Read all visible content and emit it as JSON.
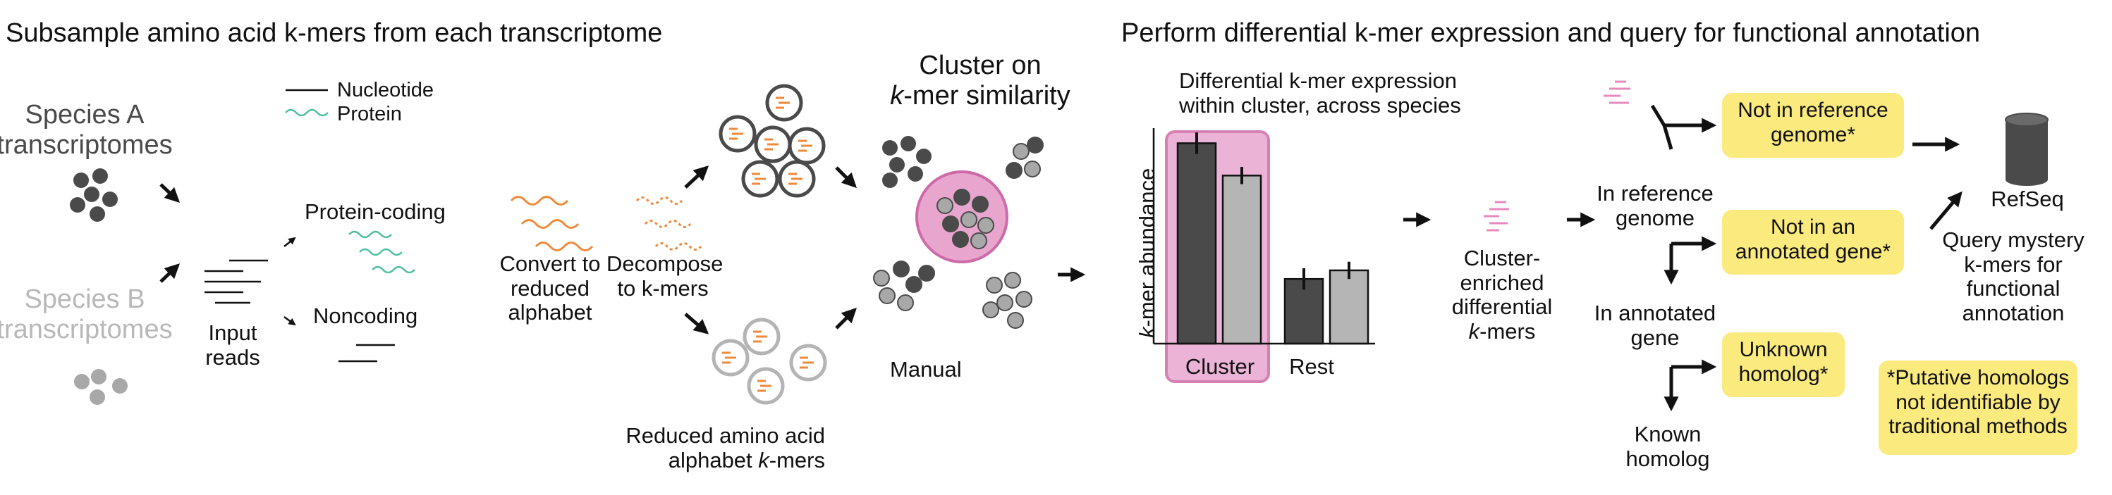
{
  "left": {
    "section_title": "Subsample amino acid k-mers from each transcriptome",
    "species_a": [
      "Species A",
      "transcriptomes"
    ],
    "species_b": [
      "Species B",
      "transcriptomes"
    ],
    "legend_nucleotide": "Nucleotide",
    "legend_protein": "Protein",
    "input_reads": [
      "Input",
      "reads"
    ],
    "protein_coding": "Protein-coding",
    "noncoding": "Noncoding",
    "convert": [
      "Convert to",
      "reduced",
      "alphabet"
    ],
    "decompose": [
      "Decompose",
      "to k-mers"
    ],
    "reduced_kmers": [
      "Reduced amino acid",
      "alphabet "
    ],
    "reduced_kmers_ital": "k",
    "reduced_kmers_tail": "-mers",
    "cluster_title_1": "Cluster on",
    "cluster_title_2_ital": "k",
    "cluster_title_2": "-mer similarity",
    "manual": "Manual"
  },
  "right": {
    "section_title": "Perform differential k-mer expression and query for functional annotation",
    "chart_heading": [
      "Differential k-mer expression",
      "within cluster, across species"
    ],
    "enriched": [
      "Cluster-",
      "enriched",
      "differential"
    ],
    "enriched_ital": "k",
    "enriched_tail": "-mers",
    "not_in_ref": [
      "Not in reference",
      "genome*"
    ],
    "in_ref": [
      "In reference",
      "genome"
    ],
    "not_annot": [
      "Not in an",
      "annotated gene*"
    ],
    "in_annot": [
      "In annotated",
      "gene"
    ],
    "unknown": [
      "Unknown",
      "homolog*"
    ],
    "known": [
      "Known",
      "homolog"
    ],
    "refseq": "RefSeq",
    "query": [
      "Query mystery",
      "k-mers  for",
      "functional",
      "annotation"
    ],
    "putative": [
      "*Putative homologs",
      "not identifiable by",
      "traditional methods"
    ]
  },
  "chart_data": {
    "type": "bar",
    "title": "Differential k-mer expression within cluster, across species",
    "ylabel": "k-mer abundance",
    "ylabel_ital": "k",
    "ylabel_tail": "-mer abundance",
    "categories": [
      "Cluster",
      "Rest"
    ],
    "series": [
      {
        "values": [
          0.93,
          0.3
        ],
        "errors": [
          0.05,
          0.05
        ],
        "color": "#4a4a4a"
      },
      {
        "values": [
          0.78,
          0.34
        ],
        "errors": [
          0.04,
          0.04
        ],
        "color": "#b5b5b5"
      }
    ],
    "ylim": [
      0,
      1
    ],
    "highlight": "Cluster",
    "highlight_color": "#e8a6cf"
  },
  "colors": {
    "species_a": "#4a4a4a",
    "species_b": "#a8a8a8",
    "protein": "#4fbfa3",
    "reduced": "#ef8a3c",
    "cluster_fill": "#e8a6cf",
    "cluster_stroke": "#cf6aa8",
    "kmer_pink": "#e889bd",
    "callout": "#fbea7e"
  }
}
